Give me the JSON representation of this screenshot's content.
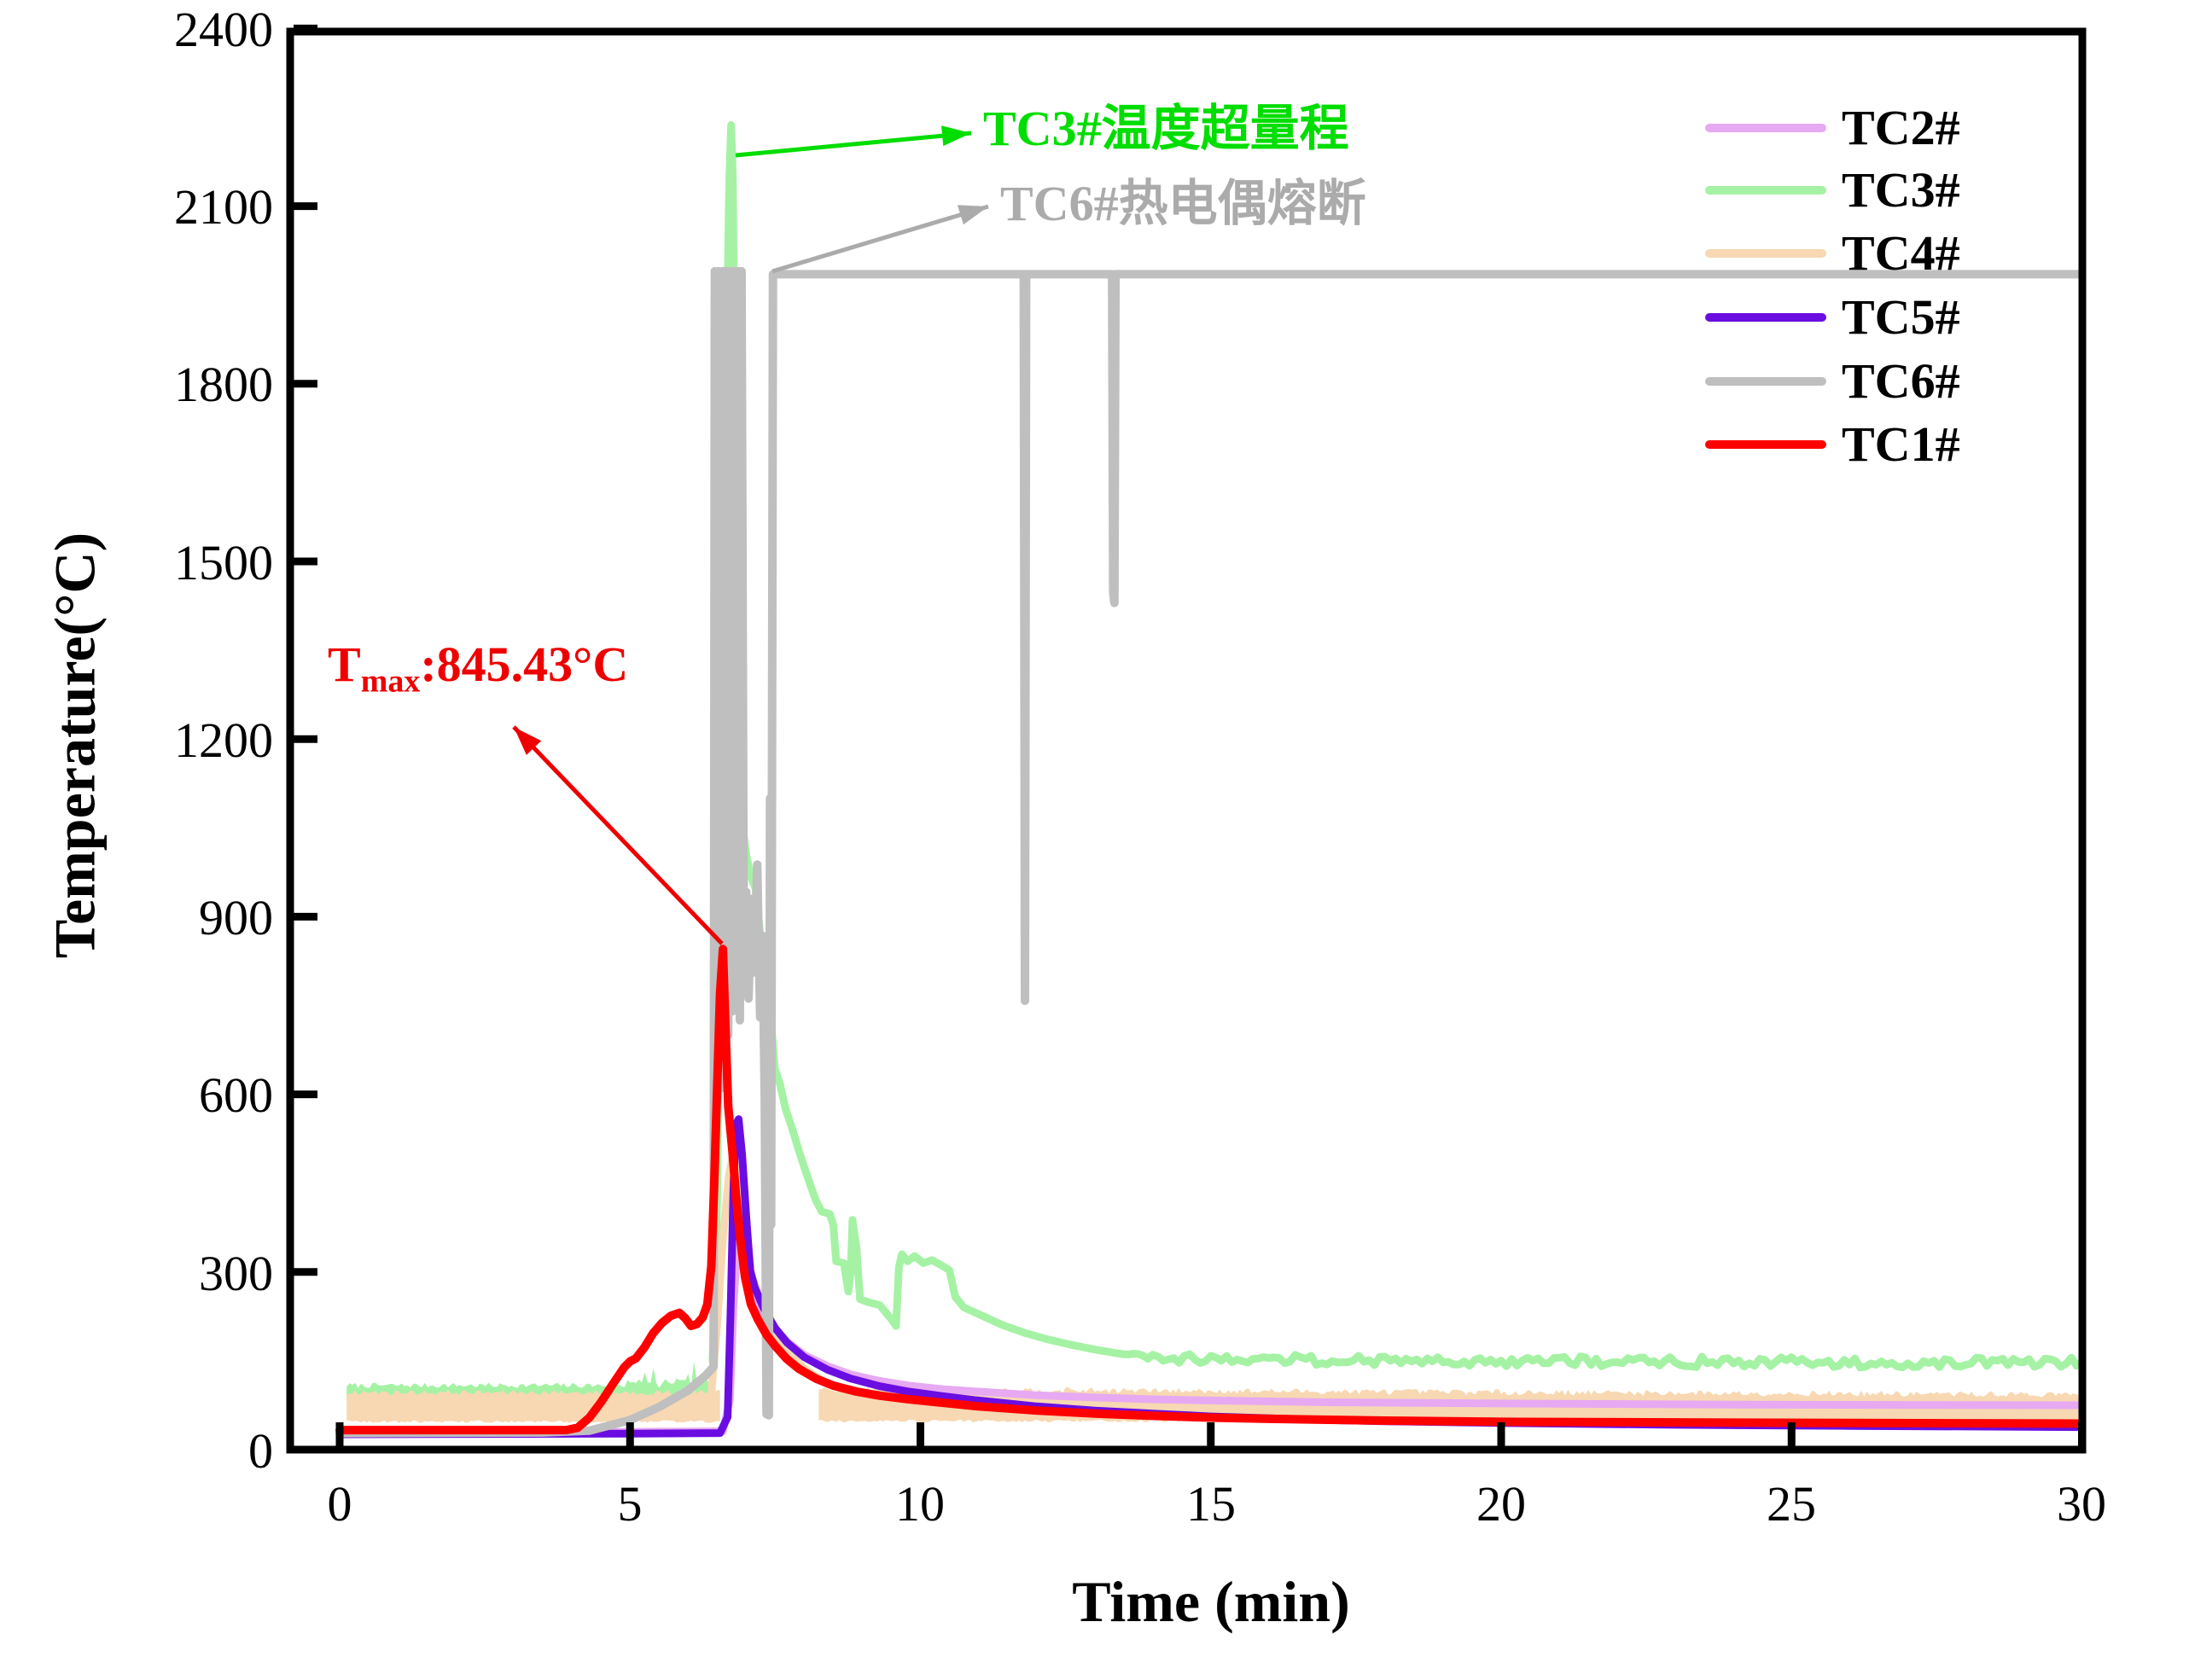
{
  "axes": {
    "y_label": "Temperature(°C)",
    "x_label": "Time (min)",
    "y_tick_labels": [
      "2400",
      "2100",
      "1800",
      "1500",
      "1200",
      "900",
      "600",
      "300",
      "0"
    ],
    "y_tick_values": [
      2400,
      2100,
      1800,
      1500,
      1200,
      900,
      600,
      300,
      0
    ],
    "x_tick_labels": [
      "0",
      "5",
      "10",
      "15",
      "20",
      "25",
      "30"
    ],
    "x_tick_values": [
      0,
      5,
      10,
      15,
      20,
      25,
      30
    ],
    "x_range": [
      0,
      30
    ],
    "y_range": [
      0,
      2400
    ],
    "grid": "off"
  },
  "legend": {
    "position": "upper-right",
    "entries": [
      {
        "label": "TC2#",
        "color": "#E7A9F2"
      },
      {
        "label": "TC3#",
        "color": "#A5F2A5"
      },
      {
        "label": "TC4#",
        "color": "#F7D8B2"
      },
      {
        "label": "TC5#",
        "color": "#6A0DE1"
      },
      {
        "label": "TC6#",
        "color": "#BFBFBF"
      },
      {
        "label": "TC1#",
        "color": "#FE0000"
      }
    ]
  },
  "annotations": {
    "tc3_over_range": {
      "text": "TC3#温度超量程",
      "color": "#00DD00",
      "arrow_from_xy": [
        862,
        182
      ],
      "arrow_to_xy": [
        1138,
        156
      ]
    },
    "tc6_fused": {
      "text": "TC6#热电偶熔断",
      "color": "#ABABAB",
      "arrow_from_xy": [
        905,
        318
      ],
      "arrow_to_xy": [
        1158,
        242
      ]
    },
    "tmax": {
      "prefix": "T",
      "sub": "max",
      "value": ":845.43°C",
      "color": "#EE0000",
      "arrow_from_xy": [
        846,
        1106
      ],
      "arrow_to_xy": [
        602,
        852
      ]
    }
  },
  "chart_data": {
    "type": "line",
    "title": "",
    "xlabel": "Time (min)",
    "ylabel": "Temperature(°C)",
    "xlim": [
      0,
      30
    ],
    "ylim": [
      0,
      2400
    ],
    "x_unit": "min",
    "y_unit": "°C",
    "tmax_marker": {
      "series": "TC1#",
      "t": 6.6,
      "value": 845.43
    },
    "events": [
      {
        "series": "TC3#",
        "t": 6.74,
        "value": 2237,
        "note": "TC3#温度超量程"
      },
      {
        "series": "TC6#",
        "t": 7.46,
        "value": 1985,
        "note": "TC6#热电偶熔断 (reads full-scale ~2000°C afterwards)"
      }
    ],
    "series": [
      {
        "name": "TC2#",
        "color": "#E7A9F2",
        "width": 9,
        "points": [
          [
            0,
            29
          ],
          [
            5,
            30
          ],
          [
            6.6,
            31
          ],
          [
            6.72,
            85
          ],
          [
            6.78,
            240
          ],
          [
            6.84,
            335
          ],
          [
            6.9,
            352
          ],
          [
            6.97,
            318
          ],
          [
            7.05,
            283
          ],
          [
            7.2,
            248
          ],
          [
            7.4,
            215
          ],
          [
            7.7,
            183
          ],
          [
            8.0,
            160
          ],
          [
            8.4,
            141
          ],
          [
            8.8,
            127
          ],
          [
            9.3,
            116
          ],
          [
            9.8,
            108
          ],
          [
            10.4,
            102
          ],
          [
            11,
            98
          ],
          [
            12,
            92
          ],
          [
            13,
            88
          ],
          [
            14,
            85
          ],
          [
            15,
            83
          ],
          [
            17,
            80
          ],
          [
            20,
            78
          ],
          [
            24,
            76
          ],
          [
            30,
            75
          ]
        ]
      },
      {
        "name": "TC3#",
        "color": "#A5F2A5",
        "width": 9,
        "noise_from": 14,
        "noise_amp": 9,
        "points": [
          [
            6.42,
            150
          ],
          [
            6.5,
            420
          ],
          [
            6.56,
            950
          ],
          [
            6.62,
            1450
          ],
          [
            6.67,
            1900
          ],
          [
            6.71,
            2150
          ],
          [
            6.74,
            2237
          ],
          [
            6.77,
            2150
          ],
          [
            6.8,
            1800
          ],
          [
            6.84,
            1380
          ],
          [
            6.88,
            1150
          ],
          [
            6.93,
            1060
          ],
          [
            7.0,
            1005
          ],
          [
            7.08,
            968
          ],
          [
            7.16,
            948
          ],
          [
            7.24,
            872
          ],
          [
            7.29,
            760
          ],
          [
            7.33,
            640
          ],
          [
            7.38,
            690
          ],
          [
            7.43,
            722
          ],
          [
            7.49,
            645
          ],
          [
            7.58,
            618
          ],
          [
            7.68,
            575
          ],
          [
            7.79,
            543
          ],
          [
            7.9,
            507
          ],
          [
            8.0,
            477
          ],
          [
            8.1,
            448
          ],
          [
            8.2,
            421
          ],
          [
            8.3,
            402
          ],
          [
            8.44,
            398
          ],
          [
            8.5,
            380
          ],
          [
            8.55,
            318
          ],
          [
            8.68,
            315
          ],
          [
            8.76,
            267
          ],
          [
            8.8,
            300
          ],
          [
            8.83,
            388
          ],
          [
            8.9,
            341
          ],
          [
            8.96,
            254
          ],
          [
            9.1,
            249
          ],
          [
            9.3,
            244
          ],
          [
            9.5,
            220
          ],
          [
            9.58,
            209
          ],
          [
            9.63,
            308
          ],
          [
            9.68,
            330
          ],
          [
            9.78,
            318
          ],
          [
            9.9,
            327
          ],
          [
            10.05,
            315
          ],
          [
            10.2,
            320
          ],
          [
            10.35,
            312
          ],
          [
            10.5,
            303
          ],
          [
            10.6,
            258
          ],
          [
            10.75,
            240
          ],
          [
            11,
            229
          ],
          [
            11.4,
            211
          ],
          [
            11.8,
            197
          ],
          [
            12.2,
            186
          ],
          [
            12.6,
            177
          ],
          [
            13,
            169
          ],
          [
            13.5,
            161
          ],
          [
            14,
            156
          ],
          [
            15,
            153
          ],
          [
            16,
            152
          ],
          [
            17,
            152
          ],
          [
            18,
            150
          ],
          [
            19,
            151
          ],
          [
            20,
            149
          ],
          [
            21,
            150
          ],
          [
            22,
            148
          ],
          [
            23,
            149
          ],
          [
            24,
            147
          ],
          [
            25,
            148
          ],
          [
            26,
            146
          ],
          [
            27,
            147
          ],
          [
            28,
            146
          ],
          [
            29,
            148
          ],
          [
            30,
            147
          ]
        ]
      },
      {
        "name": "TC4#",
        "color": "#F7D8B2",
        "width": 9,
        "points": [
          [
            6.4,
            95
          ],
          [
            6.5,
            210
          ],
          [
            6.6,
            360
          ],
          [
            6.7,
            460
          ],
          [
            6.8,
            515
          ],
          [
            6.9,
            470
          ],
          [
            7.0,
            368
          ],
          [
            7.1,
            292
          ],
          [
            7.3,
            244
          ],
          [
            7.5,
            194
          ],
          [
            7.75,
            161
          ],
          [
            8.0,
            137
          ],
          [
            8.3,
            117
          ],
          [
            8.6,
            105
          ],
          [
            9.0,
            95
          ],
          [
            9.3,
            90
          ]
        ]
      },
      {
        "name": "TC5#",
        "color": "#6A0DE1",
        "width": 9,
        "points": [
          [
            0,
            26
          ],
          [
            5,
            27
          ],
          [
            6.55,
            28
          ],
          [
            6.68,
            55
          ],
          [
            6.73,
            230
          ],
          [
            6.78,
            440
          ],
          [
            6.82,
            548
          ],
          [
            6.87,
            558
          ],
          [
            6.93,
            498
          ],
          [
            7.0,
            396
          ],
          [
            7.07,
            302
          ],
          [
            7.15,
            273
          ],
          [
            7.3,
            239
          ],
          [
            7.5,
            205
          ],
          [
            7.7,
            181
          ],
          [
            8.0,
            156
          ],
          [
            8.4,
            135
          ],
          [
            8.8,
            120
          ],
          [
            9.3,
            107
          ],
          [
            9.8,
            98
          ],
          [
            10.4,
            90
          ],
          [
            11,
            83
          ],
          [
            12,
            73
          ],
          [
            13,
            66
          ],
          [
            14,
            61
          ],
          [
            15,
            56
          ],
          [
            16,
            53
          ],
          [
            17,
            50
          ],
          [
            18,
            48
          ],
          [
            20,
            45
          ],
          [
            23,
            42
          ],
          [
            26,
            40
          ],
          [
            30,
            38
          ]
        ]
      },
      {
        "name": "TC6#",
        "color": "#BFBFBF",
        "width": 10,
        "points": [
          [
            0,
            28
          ],
          [
            3.5,
            29
          ],
          [
            4.3,
            32
          ],
          [
            5,
            50
          ],
          [
            5.5,
            72
          ],
          [
            6,
            100
          ],
          [
            6.3,
            125
          ],
          [
            6.44,
            140
          ],
          [
            6.46,
            1990
          ],
          [
            6.49,
            570
          ],
          [
            6.52,
            1990
          ],
          [
            6.56,
            610
          ],
          [
            6.59,
            1990
          ],
          [
            6.62,
            645
          ],
          [
            6.65,
            1990
          ],
          [
            6.69,
            700
          ],
          [
            6.72,
            1990
          ],
          [
            6.76,
            740
          ],
          [
            6.79,
            1990
          ],
          [
            6.83,
            762
          ],
          [
            6.86,
            1990
          ],
          [
            6.89,
            725
          ],
          [
            6.92,
            1990
          ],
          [
            6.96,
            807
          ],
          [
            7.0,
            942
          ],
          [
            7.04,
            762
          ],
          [
            7.09,
            930
          ],
          [
            7.14,
            806
          ],
          [
            7.19,
            988
          ],
          [
            7.24,
            730
          ],
          [
            7.28,
            868
          ],
          [
            7.32,
            592
          ],
          [
            7.35,
            60
          ],
          [
            7.39,
            58
          ],
          [
            7.41,
            1100
          ],
          [
            7.43,
            380
          ],
          [
            7.46,
            1985
          ],
          [
            11.78,
            1985
          ],
          [
            11.8,
            758
          ],
          [
            11.82,
            1985
          ],
          [
            13.3,
            1985
          ],
          [
            13.32,
            1448
          ],
          [
            13.34,
            1430
          ],
          [
            13.36,
            1985
          ],
          [
            30,
            1985
          ]
        ]
      },
      {
        "name": "TC1#",
        "color": "#FE0000",
        "width": 10,
        "points": [
          [
            0,
            33
          ],
          [
            3.9,
            33
          ],
          [
            4.1,
            37
          ],
          [
            4.3,
            54
          ],
          [
            4.5,
            80
          ],
          [
            4.7,
            110
          ],
          [
            4.9,
            139
          ],
          [
            5.0,
            149
          ],
          [
            5.1,
            154
          ],
          [
            5.25,
            173
          ],
          [
            5.4,
            197
          ],
          [
            5.55,
            214
          ],
          [
            5.7,
            226
          ],
          [
            5.85,
            231
          ],
          [
            5.95,
            222
          ],
          [
            6.05,
            209
          ],
          [
            6.15,
            212
          ],
          [
            6.25,
            223
          ],
          [
            6.33,
            245
          ],
          [
            6.4,
            310
          ],
          [
            6.45,
            450
          ],
          [
            6.5,
            610
          ],
          [
            6.55,
            770
          ],
          [
            6.6,
            845.4
          ],
          [
            6.64,
            720
          ],
          [
            6.69,
            580
          ],
          [
            6.76,
            507
          ],
          [
            6.82,
            435
          ],
          [
            6.89,
            363
          ],
          [
            6.98,
            291
          ],
          [
            7.08,
            246
          ],
          [
            7.2,
            220
          ],
          [
            7.35,
            194
          ],
          [
            7.5,
            175
          ],
          [
            7.7,
            153
          ],
          [
            7.9,
            137
          ],
          [
            8.2,
            120
          ],
          [
            8.5,
            108
          ],
          [
            8.9,
            98
          ],
          [
            9.3,
            91
          ],
          [
            9.8,
            85
          ],
          [
            10.3,
            80
          ],
          [
            11,
            73
          ],
          [
            12,
            66
          ],
          [
            13,
            61
          ],
          [
            14,
            57
          ],
          [
            15,
            54
          ],
          [
            16,
            52
          ],
          [
            18,
            49
          ],
          [
            20,
            47
          ],
          [
            23,
            46
          ],
          [
            26,
            45
          ],
          [
            30,
            44
          ]
        ]
      }
    ],
    "noise_bands": [
      {
        "series": "TC3#",
        "t0": 0.12,
        "t1": 6.45,
        "top": 104,
        "bottom": 80,
        "amp": 9,
        "spike_grow_from": 4.8,
        "spike_amp": 85,
        "color": "#A5F2A5"
      },
      {
        "series": "TC4#",
        "t0": 0.12,
        "t1": 6.55,
        "top": 92,
        "top_end": 92,
        "bottom": 45,
        "amp": 9,
        "color": "#F7D8B2"
      },
      {
        "series": "TC4#",
        "t0": 8.25,
        "t1": 30,
        "top": 97,
        "top_end": 88,
        "bottom": 46,
        "amp": 10,
        "color": "#F7D8B2"
      }
    ]
  }
}
